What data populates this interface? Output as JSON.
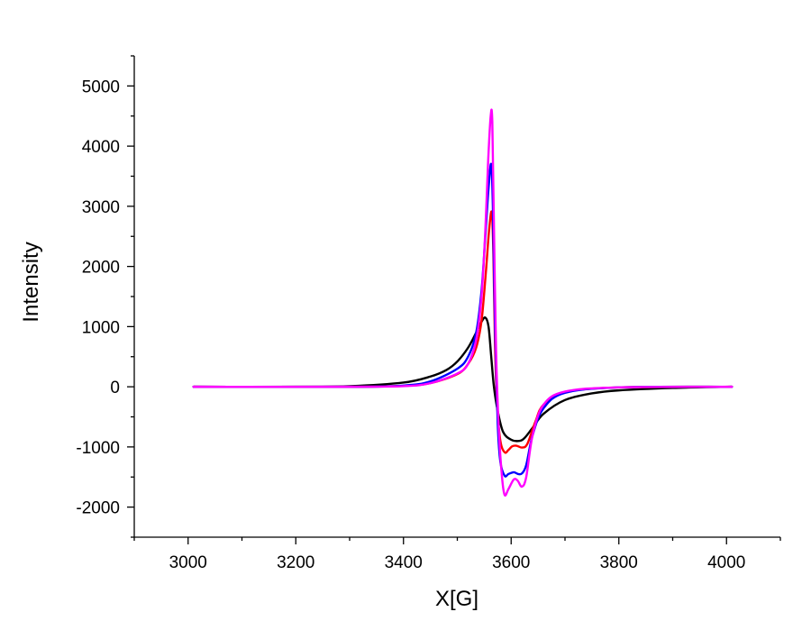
{
  "chart_data": {
    "type": "line",
    "title": "",
    "xlabel": "X[G]",
    "ylabel": "Intensity",
    "xlim": [
      2900,
      4100
    ],
    "ylim": [
      -2500,
      5500
    ],
    "x_ticks": [
      3000,
      3200,
      3400,
      3600,
      3800,
      4000
    ],
    "y_ticks": [
      -2000,
      -1000,
      0,
      1000,
      2000,
      3000,
      4000,
      5000
    ],
    "x_tick_labels": [
      "3000",
      "3200",
      "3400",
      "3600",
      "3800",
      "4000"
    ],
    "y_tick_labels": [
      "-2000",
      "-1000",
      "0",
      "1000",
      "2000",
      "3000",
      "4000",
      "5000"
    ],
    "grid": false,
    "legend": "none",
    "series": [
      {
        "color": "#000000",
        "x": [
          3010,
          3200,
          3300,
          3400,
          3450,
          3480,
          3500,
          3520,
          3535,
          3545,
          3552,
          3558,
          3563,
          3568,
          3575,
          3585,
          3600,
          3615,
          3625,
          3640,
          3660,
          3700,
          3750,
          3800,
          3900,
          4010
        ],
        "y": [
          0,
          0,
          10,
          70,
          170,
          280,
          420,
          650,
          900,
          1080,
          1150,
          1000,
          500,
          0,
          -400,
          -750,
          -880,
          -900,
          -850,
          -680,
          -450,
          -220,
          -110,
          -60,
          -20,
          0
        ]
      },
      {
        "color": "#ff0000",
        "x": [
          3010,
          3300,
          3400,
          3450,
          3500,
          3520,
          3535,
          3545,
          3553,
          3559,
          3564,
          3567,
          3570,
          3574,
          3580,
          3588,
          3595,
          3602,
          3610,
          3620,
          3630,
          3645,
          3660,
          3700,
          3800,
          4010
        ],
        "y": [
          0,
          0,
          15,
          60,
          210,
          380,
          650,
          1100,
          1900,
          2600,
          2900,
          2200,
          700,
          -300,
          -900,
          -1090,
          -1050,
          -990,
          -980,
          -1010,
          -950,
          -580,
          -300,
          -90,
          -10,
          0
        ]
      },
      {
        "color": "#0000ff",
        "x": [
          3010,
          3300,
          3400,
          3450,
          3500,
          3520,
          3535,
          3545,
          3552,
          3558,
          3563,
          3566,
          3570,
          3575,
          3580,
          3588,
          3595,
          3605,
          3613,
          3620,
          3628,
          3640,
          3660,
          3700,
          3800,
          4010
        ],
        "y": [
          0,
          0,
          20,
          90,
          300,
          500,
          900,
          1600,
          2500,
          3300,
          3700,
          3000,
          1000,
          -600,
          -1250,
          -1480,
          -1450,
          -1420,
          -1450,
          -1440,
          -1300,
          -800,
          -360,
          -100,
          -10,
          0
        ]
      },
      {
        "color": "#ff00ff",
        "x": [
          3010,
          3300,
          3400,
          3450,
          3500,
          3520,
          3535,
          3545,
          3552,
          3557,
          3562,
          3565,
          3568,
          3572,
          3577,
          3583,
          3588,
          3595,
          3605,
          3612,
          3620,
          3628,
          3640,
          3660,
          3700,
          3800,
          4010
        ],
        "y": [
          0,
          0,
          10,
          60,
          220,
          380,
          780,
          1500,
          2600,
          3700,
          4500,
          4400,
          2700,
          600,
          -700,
          -1500,
          -1800,
          -1700,
          -1540,
          -1560,
          -1660,
          -1500,
          -800,
          -300,
          -80,
          -10,
          0
        ]
      }
    ]
  }
}
